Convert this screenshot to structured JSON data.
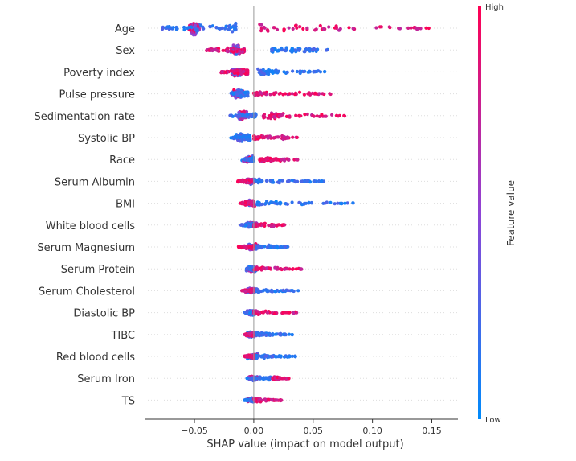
{
  "chart_data": {
    "type": "scatter",
    "subtype": "shap-beeswarm-summary",
    "title": "",
    "xlabel": "SHAP value (impact on model output)",
    "xlim": [
      -0.092,
      0.172
    ],
    "xticks": [
      -0.05,
      0.0,
      0.05,
      0.1,
      0.15
    ],
    "xtick_labels": [
      "−0.05",
      "0.00",
      "0.05",
      "0.10",
      "0.15"
    ],
    "zero_line": 0.0,
    "grid": false,
    "colorbar": {
      "title": "Feature value",
      "high_label": "High",
      "low_label": "Low",
      "high_color": "#ff0052",
      "low_color": "#008bfb"
    },
    "features": [
      {
        "name": "Age",
        "low_range": [
          -0.08,
          -0.015
        ],
        "high_range": [
          0.005,
          0.155
        ],
        "center": -0.05,
        "low_side": "left",
        "width": 0.9
      },
      {
        "name": "Sex",
        "low_range": [
          0.015,
          0.063
        ],
        "high_range": [
          -0.04,
          -0.008
        ],
        "center": -0.015,
        "low_side": "right",
        "width": 0.7
      },
      {
        "name": "Poverty index",
        "low_range": [
          0.003,
          0.06
        ],
        "high_range": [
          -0.028,
          -0.005
        ],
        "center": -0.015,
        "low_side": "right",
        "width": 0.6
      },
      {
        "name": "Pulse pressure",
        "low_range": [
          -0.02,
          -0.005
        ],
        "high_range": [
          0.0,
          0.065
        ],
        "center": -0.013,
        "low_side": "left",
        "width": 0.6
      },
      {
        "name": "Sedimentation rate",
        "low_range": [
          -0.02,
          0.002
        ],
        "high_range": [
          0.008,
          0.08
        ],
        "center": -0.01,
        "low_side": "left",
        "width": 0.6
      },
      {
        "name": "Systolic BP",
        "low_range": [
          -0.02,
          -0.003
        ],
        "high_range": [
          0.0,
          0.037
        ],
        "center": -0.01,
        "low_side": "left",
        "width": 0.6
      },
      {
        "name": "Race",
        "low_range": [
          -0.008,
          0.0
        ],
        "high_range": [
          0.005,
          0.037
        ],
        "center": -0.005,
        "low_side": "left",
        "width": 0.45
      },
      {
        "name": "Serum Albumin",
        "low_range": [
          0.003,
          0.06
        ],
        "high_range": [
          -0.015,
          -0.002
        ],
        "center": -0.003,
        "low_side": "right",
        "width": 0.45
      },
      {
        "name": "BMI",
        "low_range": [
          0.003,
          0.088
        ],
        "high_range": [
          -0.012,
          0.0
        ],
        "center": -0.003,
        "low_side": "right",
        "width": 0.45
      },
      {
        "name": "White blood cells",
        "low_range": [
          -0.012,
          0.0
        ],
        "high_range": [
          0.0,
          0.028
        ],
        "center": -0.002,
        "low_side": "left",
        "width": 0.45
      },
      {
        "name": "Serum Magnesium",
        "low_range": [
          0.0,
          0.029
        ],
        "high_range": [
          -0.013,
          0.0
        ],
        "center": -0.002,
        "low_side": "right",
        "width": 0.45
      },
      {
        "name": "Serum Protein",
        "low_range": [
          -0.006,
          0.0
        ],
        "high_range": [
          0.0,
          0.041
        ],
        "center": -0.002,
        "low_side": "left",
        "width": 0.4
      },
      {
        "name": "Serum Cholesterol",
        "low_range": [
          0.0,
          0.038
        ],
        "high_range": [
          -0.01,
          0.0
        ],
        "center": -0.002,
        "low_side": "right",
        "width": 0.45
      },
      {
        "name": "Diastolic BP",
        "low_range": [
          -0.008,
          0.0
        ],
        "high_range": [
          0.0,
          0.038
        ],
        "center": -0.002,
        "low_side": "left",
        "width": 0.4
      },
      {
        "name": "TIBC",
        "low_range": [
          0.0,
          0.033
        ],
        "high_range": [
          -0.008,
          0.0
        ],
        "center": -0.002,
        "low_side": "right",
        "width": 0.4
      },
      {
        "name": "Red blood cells",
        "low_range": [
          0.0,
          0.036
        ],
        "high_range": [
          -0.008,
          0.0
        ],
        "center": -0.001,
        "low_side": "right",
        "width": 0.4
      },
      {
        "name": "Serum Iron",
        "low_range": [
          -0.008,
          0.014
        ],
        "high_range": [
          0.016,
          0.03
        ],
        "center": -0.001,
        "low_side": "left",
        "width": 0.35
      },
      {
        "name": "TS",
        "low_range": [
          -0.008,
          0.0
        ],
        "high_range": [
          0.0,
          0.025
        ],
        "center": -0.001,
        "low_side": "left",
        "width": 0.35
      }
    ]
  }
}
